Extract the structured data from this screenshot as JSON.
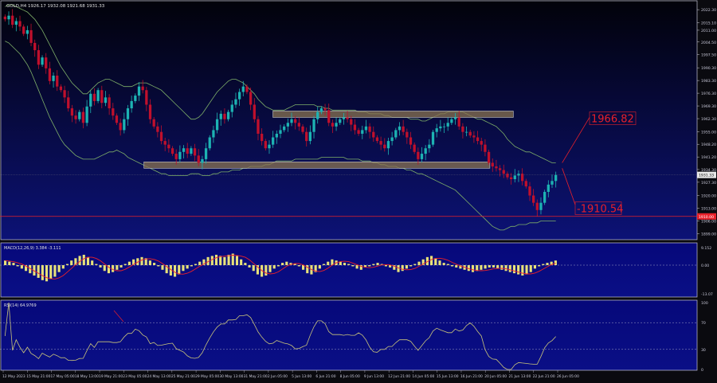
{
  "symbol_header": "GOLD,H4 1926.17 1932.08 1921.68 1931.33",
  "colors": {
    "background_top": "#02020a",
    "background_bottom": "#0a0f6e",
    "bull": "#1db3b3",
    "bear": "#c0102c",
    "band": "#7fb069",
    "zone": "#8a7350",
    "level_line": "#e8202a",
    "macd_hist": "#e8e27a",
    "macd_signal": "#e8202a",
    "rsi_line": "#c9c47a",
    "axis_text": "#c8c8d8",
    "panel_border": "#c8c8d8"
  },
  "price_axis": {
    "ticks": [
      "2022.30",
      "2015.10",
      "2011.00",
      "2004.50",
      "1997.50",
      "1990.30",
      "1983.30",
      "1976.30",
      "1969.30",
      "1962.30",
      "1955.00",
      "1948.20",
      "1941.20",
      "1934.30",
      "1927.30",
      "1920.00",
      "1913.00",
      "1906.00",
      "1899.00"
    ],
    "current_price_label": "1931.33",
    "red_price_label": "1910.00"
  },
  "levels": {
    "resistance_label": "1966.82",
    "support_label": "-1910.54"
  },
  "macd": {
    "header": "MACD(12,26,9) 3.384 -3.111",
    "ticks": [
      "9.152",
      "0.00",
      "-13.07"
    ]
  },
  "rsi": {
    "header": "RSI(14) 64.9769",
    "ticks": [
      "100",
      "70",
      "30",
      "0"
    ]
  },
  "time_axis": [
    "12 May 2023",
    "15 May 21:00",
    "17 May 05:00",
    "18 May 13:00",
    "19 May 21:00",
    "23 May 05:00",
    "24 May 13:00",
    "25 May 21:00",
    "29 May 05:00",
    "30 May 13:00",
    "31 May 21:00",
    "2 Jun 05:00",
    "5 Jun 13:00",
    "6 Jun 21:00",
    "8 Jun 05:00",
    "9 Jun 13:00",
    "12 Jun 21:00",
    "14 Jun 05:00",
    "15 Jun 13:00",
    "16 Jun 21:00",
    "20 Jun 05:00",
    "21 Jun 13:00",
    "22 Jun 21:00",
    "26 Jun 05:00"
  ],
  "chart_data": {
    "type": "candlestick",
    "symbol": "GOLD",
    "timeframe": "H4",
    "price_range": [
      1897,
      2025
    ],
    "x_range": [
      "12 May 2023",
      "26 Jun 05:00"
    ],
    "close_series": [
      2017,
      2019,
      2014,
      2016,
      2013,
      2009,
      2011,
      2004,
      2000,
      1992,
      1996,
      1990,
      1983,
      1986,
      1980,
      1978,
      1974,
      1968,
      1964,
      1962,
      1966,
      1960,
      1969,
      1976,
      1972,
      1978,
      1971,
      1974,
      1968,
      1964,
      1960,
      1956,
      1962,
      1968,
      1972,
      1975,
      1980,
      1978,
      1970,
      1962,
      1958,
      1955,
      1950,
      1948,
      1946,
      1943,
      1940,
      1944,
      1946,
      1943,
      1946,
      1942,
      1938,
      1940,
      1946,
      1952,
      1956,
      1962,
      1965,
      1962,
      1966,
      1970,
      1973,
      1977,
      1980,
      1977,
      1970,
      1962,
      1954,
      1950,
      1946,
      1948,
      1952,
      1954,
      1956,
      1958,
      1960,
      1962,
      1960,
      1958,
      1955,
      1950,
      1955,
      1962,
      1966,
      1968,
      1967,
      1960,
      1958,
      1960,
      1962,
      1963,
      1962,
      1959,
      1956,
      1954,
      1956,
      1958,
      1955,
      1952,
      1950,
      1948,
      1946,
      1950,
      1952,
      1956,
      1958,
      1955,
      1952,
      1948,
      1944,
      1940,
      1943,
      1946,
      1948,
      1955,
      1957,
      1958,
      1958,
      1960,
      1962,
      1963,
      1958,
      1955,
      1955,
      1953,
      1952,
      1950,
      1948,
      1944,
      1938,
      1936,
      1935,
      1934,
      1932,
      1930,
      1929,
      1931,
      1932,
      1928,
      1925,
      1920,
      1916,
      1912,
      1916,
      1922,
      1926,
      1928,
      1931.33
    ],
    "bands_upper": [
      2024,
      2025,
      2025,
      2024,
      2023,
      2022,
      2021,
      2019,
      2017,
      2014,
      2011,
      2007,
      2003,
      1999,
      1995,
      1991,
      1988,
      1985,
      1982,
      1980,
      1978,
      1976,
      1976,
      1978,
      1980,
      1982,
      1983,
      1984,
      1984,
      1983,
      1982,
      1981,
      1980,
      1980,
      1980,
      1981,
      1982,
      1982,
      1982,
      1981,
      1980,
      1979,
      1978,
      1976,
      1974,
      1972,
      1970,
      1968,
      1966,
      1964,
      1962,
      1962,
      1963,
      1965,
      1968,
      1971,
      1974,
      1977,
      1979,
      1981,
      1983,
      1984,
      1984,
      1983,
      1982,
      1980,
      1978,
      1976,
      1973,
      1971,
      1969,
      1968,
      1967,
      1967,
      1967,
      1967,
      1968,
      1969,
      1970,
      1970,
      1970,
      1970,
      1970,
      1970,
      1969,
      1969,
      1968,
      1968,
      1967,
      1967,
      1967,
      1967,
      1967,
      1967,
      1967,
      1966,
      1966,
      1966,
      1965,
      1965,
      1965,
      1965,
      1964,
      1964,
      1963,
      1963,
      1963,
      1963,
      1963,
      1962,
      1962,
      1962,
      1961,
      1961,
      1962,
      1963,
      1964,
      1965,
      1965,
      1966,
      1966,
      1966,
      1966,
      1966,
      1965,
      1964,
      1963,
      1962,
      1962,
      1961,
      1960,
      1959,
      1958,
      1956,
      1954,
      1951,
      1949,
      1947,
      1946,
      1945,
      1944,
      1944,
      1943,
      1942,
      1941,
      1940,
      1939,
      1938,
      1938
    ],
    "bands_lower": [
      2005,
      2004,
      2002,
      2000,
      1998,
      1995,
      1992,
      1988,
      1983,
      1978,
      1973,
      1968,
      1963,
      1959,
      1955,
      1951,
      1948,
      1946,
      1944,
      1942,
      1941,
      1940,
      1940,
      1940,
      1940,
      1941,
      1942,
      1943,
      1944,
      1944,
      1945,
      1944,
      1943,
      1941,
      1940,
      1939,
      1938,
      1937,
      1936,
      1935,
      1934,
      1933,
      1932,
      1932,
      1931,
      1931,
      1931,
      1931,
      1931,
      1931,
      1932,
      1932,
      1932,
      1931,
      1931,
      1931,
      1932,
      1932,
      1933,
      1933,
      1933,
      1934,
      1934,
      1934,
      1935,
      1935,
      1936,
      1936,
      1936,
      1936,
      1937,
      1937,
      1938,
      1939,
      1939,
      1939,
      1939,
      1939,
      1940,
      1940,
      1940,
      1940,
      1940,
      1940,
      1940,
      1941,
      1941,
      1941,
      1941,
      1941,
      1941,
      1941,
      1940,
      1940,
      1940,
      1940,
      1939,
      1939,
      1939,
      1938,
      1938,
      1937,
      1937,
      1936,
      1936,
      1936,
      1935,
      1935,
      1934,
      1934,
      1933,
      1932,
      1932,
      1931,
      1930,
      1929,
      1928,
      1927,
      1926,
      1925,
      1924,
      1923,
      1921,
      1919,
      1917,
      1915,
      1913,
      1911,
      1909,
      1907,
      1905,
      1903,
      1902,
      1901,
      1901,
      1902,
      1903,
      1903,
      1904,
      1904,
      1904,
      1905,
      1905,
      1905,
      1906,
      1906,
      1906,
      1906,
      1906
    ],
    "zones": [
      {
        "price_top": 1966.5,
        "price_bottom": 1963.0,
        "start_fraction": 0.46,
        "end_fraction": 0.87
      },
      {
        "price_top": 1938.5,
        "price_bottom": 1935.0,
        "start_fraction": 0.24,
        "end_fraction": 0.83
      }
    ],
    "levels": [
      1966.82,
      1910.54
    ],
    "macd_hist": [
      4,
      3,
      2,
      -1,
      -3,
      -5,
      -7,
      -9,
      -11,
      -13,
      -14,
      -12,
      -10,
      -6,
      -3,
      1,
      4,
      6,
      8,
      9,
      7,
      4,
      1,
      -2,
      -5,
      -7,
      -6,
      -4,
      -2,
      1,
      3,
      5,
      6,
      7,
      6,
      4,
      2,
      -1,
      -4,
      -7,
      -9,
      -10,
      -8,
      -5,
      -3,
      -1,
      1,
      3,
      5,
      7,
      8,
      9,
      8,
      7,
      9,
      10,
      8,
      5,
      2,
      -2,
      -5,
      -8,
      -10,
      -9,
      -6,
      -3,
      -1,
      2,
      3,
      2,
      1,
      -1,
      -4,
      -7,
      -8,
      -6,
      -3,
      1,
      3,
      5,
      4,
      3,
      2,
      1,
      -1,
      -3,
      -4,
      -2,
      -1,
      1,
      2,
      1,
      -1,
      -2,
      -4,
      -6,
      -5,
      -3,
      -1,
      1,
      3,
      5,
      7,
      8,
      6,
      4,
      2,
      1,
      -1,
      -2,
      -3,
      -4,
      -5,
      -6,
      -5,
      -4,
      -3,
      -2,
      -2,
      -3,
      -4,
      -5,
      -6,
      -7,
      -8,
      -9,
      -8,
      -6,
      -3,
      -1,
      1,
      2,
      3,
      4
    ]
  }
}
